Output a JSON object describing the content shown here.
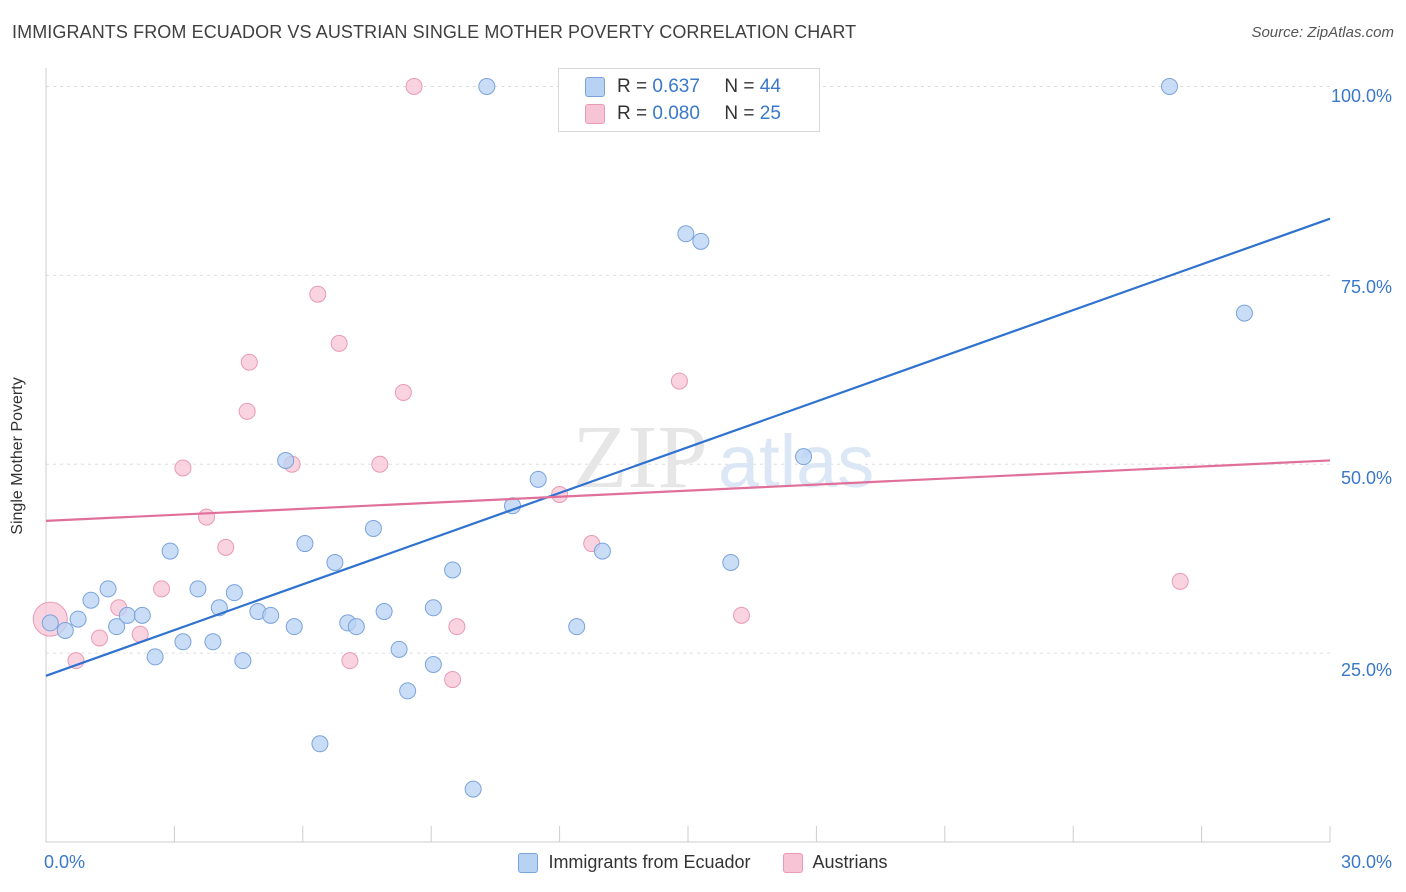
{
  "header": {
    "title": "IMMIGRANTS FROM ECUADOR VS AUSTRIAN SINGLE MOTHER POVERTY CORRELATION CHART",
    "source": "Source: ZipAtlas.com"
  },
  "legend": {
    "rows": [
      {
        "r_label": "R =",
        "r_value": "0.637",
        "n_label": "N =",
        "n_value": "44"
      },
      {
        "r_label": "R =",
        "r_value": "0.080",
        "n_label": "N =",
        "n_value": "25"
      }
    ]
  },
  "watermark": {
    "zip": "ZIP",
    "atlas": "atlas"
  },
  "colors": {
    "blue_fill": "#b8d2f3",
    "blue_stroke": "#7aa3dc",
    "blue_line": "#2f72cf",
    "pink_fill": "#f7c4d5",
    "pink_stroke": "#e99ab5",
    "pink_line": "#e0709a",
    "tick_text": "#3a78c9",
    "grid": "#dddddd"
  },
  "chart_data": {
    "type": "scatter",
    "title": "IMMIGRANTS FROM ECUADOR VS AUSTRIAN SINGLE MOTHER POVERTY CORRELATION CHART",
    "xlabel": "",
    "ylabel": "Single Mother Poverty",
    "xlim": [
      0,
      30
    ],
    "ylim": [
      0,
      103.5
    ],
    "x_tick_labels": [
      "0.0%",
      "30.0%"
    ],
    "y_ticks": [
      25,
      50,
      75,
      100
    ],
    "y_tick_labels": [
      "25.0%",
      "50.0%",
      "75.0%",
      "100.0%"
    ],
    "grid": true,
    "legend_position": "top-center",
    "series": [
      {
        "name": "Immigrants from Ecuador",
        "color": "#b8d2f3",
        "trend": {
          "x": [
            0,
            30
          ],
          "y": [
            22.0,
            82.5
          ]
        },
        "points": [
          {
            "x": 0.1,
            "y": 29.0
          },
          {
            "x": 0.45,
            "y": 28.0
          },
          {
            "x": 0.75,
            "y": 29.5
          },
          {
            "x": 1.05,
            "y": 32.0
          },
          {
            "x": 1.45,
            "y": 33.5
          },
          {
            "x": 1.65,
            "y": 28.5
          },
          {
            "x": 1.9,
            "y": 30.0
          },
          {
            "x": 2.25,
            "y": 30.0
          },
          {
            "x": 2.55,
            "y": 24.5
          },
          {
            "x": 2.9,
            "y": 38.5
          },
          {
            "x": 3.2,
            "y": 26.5
          },
          {
            "x": 3.55,
            "y": 33.5
          },
          {
            "x": 3.9,
            "y": 26.5
          },
          {
            "x": 4.05,
            "y": 31.0
          },
          {
            "x": 4.4,
            "y": 33.0
          },
          {
            "x": 4.6,
            "y": 24.0
          },
          {
            "x": 4.95,
            "y": 30.5
          },
          {
            "x": 5.25,
            "y": 30.0
          },
          {
            "x": 5.6,
            "y": 50.5
          },
          {
            "x": 5.8,
            "y": 28.5
          },
          {
            "x": 6.05,
            "y": 39.5
          },
          {
            "x": 6.4,
            "y": 13.0
          },
          {
            "x": 6.75,
            "y": 37.0
          },
          {
            "x": 7.05,
            "y": 29.0
          },
          {
            "x": 7.25,
            "y": 28.5
          },
          {
            "x": 7.65,
            "y": 41.5
          },
          {
            "x": 7.9,
            "y": 30.5
          },
          {
            "x": 8.25,
            "y": 25.5
          },
          {
            "x": 8.45,
            "y": 20.0
          },
          {
            "x": 9.05,
            "y": 31.0
          },
          {
            "x": 9.05,
            "y": 23.5
          },
          {
            "x": 9.5,
            "y": 36.0
          },
          {
            "x": 9.98,
            "y": 7.0
          },
          {
            "x": 10.3,
            "y": 100.0
          },
          {
            "x": 10.9,
            "y": 44.5
          },
          {
            "x": 11.5,
            "y": 48.0
          },
          {
            "x": 12.4,
            "y": 28.5
          },
          {
            "x": 13.0,
            "y": 38.5
          },
          {
            "x": 14.95,
            "y": 80.5
          },
          {
            "x": 15.3,
            "y": 79.5
          },
          {
            "x": 16.0,
            "y": 37.0
          },
          {
            "x": 17.7,
            "y": 51.0
          },
          {
            "x": 26.25,
            "y": 100.0
          },
          {
            "x": 28.0,
            "y": 70.0
          }
        ]
      },
      {
        "name": "Austrians",
        "color": "#f7c4d5",
        "trend": {
          "x": [
            0,
            30
          ],
          "y": [
            42.5,
            50.5
          ]
        },
        "points": [
          {
            "x": 0.1,
            "y": 29.5,
            "big": true
          },
          {
            "x": 0.7,
            "y": 24.0
          },
          {
            "x": 1.25,
            "y": 27.0
          },
          {
            "x": 1.7,
            "y": 31.0
          },
          {
            "x": 2.2,
            "y": 27.5
          },
          {
            "x": 2.7,
            "y": 33.5
          },
          {
            "x": 3.2,
            "y": 49.5
          },
          {
            "x": 3.75,
            "y": 43.0
          },
          {
            "x": 4.2,
            "y": 39.0
          },
          {
            "x": 4.7,
            "y": 57.0
          },
          {
            "x": 4.75,
            "y": 63.5
          },
          {
            "x": 5.75,
            "y": 50.0
          },
          {
            "x": 6.35,
            "y": 72.5
          },
          {
            "x": 6.85,
            "y": 66.0
          },
          {
            "x": 7.1,
            "y": 24.0
          },
          {
            "x": 7.8,
            "y": 50.0
          },
          {
            "x": 8.35,
            "y": 59.5
          },
          {
            "x": 8.6,
            "y": 100.0
          },
          {
            "x": 9.5,
            "y": 21.5
          },
          {
            "x": 9.6,
            "y": 28.5
          },
          {
            "x": 12.0,
            "y": 46.0
          },
          {
            "x": 12.75,
            "y": 39.5
          },
          {
            "x": 14.8,
            "y": 61.0
          },
          {
            "x": 16.25,
            "y": 30.0
          },
          {
            "x": 26.5,
            "y": 34.5
          }
        ]
      }
    ]
  }
}
